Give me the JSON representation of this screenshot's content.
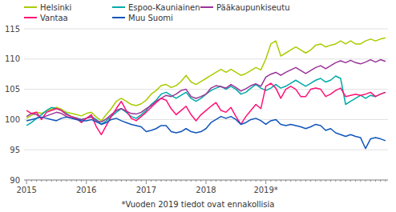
{
  "chart_data": {
    "type": "line",
    "categories": [
      "2015",
      null,
      null,
      null,
      null,
      null,
      null,
      null,
      null,
      null,
      null,
      null,
      "2016",
      null,
      null,
      null,
      null,
      null,
      null,
      null,
      null,
      null,
      null,
      null,
      "2017",
      null,
      null,
      null,
      null,
      null,
      null,
      null,
      null,
      null,
      null,
      null,
      "2018",
      null,
      null,
      null,
      null,
      null,
      null,
      null,
      null,
      null,
      null,
      null,
      "2019*",
      null,
      null,
      null,
      null,
      null,
      null,
      null,
      null,
      null,
      null,
      null,
      null,
      null,
      null,
      null,
      null,
      null,
      null,
      null,
      null,
      null,
      null,
      null,
      null
    ],
    "series": [
      {
        "name": "Helsinki",
        "color": "#aacc00",
        "values": [
          100.2,
          100.7,
          101.2,
          101.0,
          101.4,
          101.7,
          102.0,
          101.7,
          101.2,
          101.0,
          100.8,
          100.6,
          101.0,
          101.2,
          100.4,
          99.8,
          100.8,
          101.8,
          103.0,
          103.5,
          103.0,
          102.5,
          102.3,
          102.6,
          103.2,
          104.2,
          104.8,
          105.6,
          105.8,
          105.3,
          105.6,
          106.3,
          107.3,
          106.2,
          105.8,
          106.3,
          106.8,
          107.3,
          107.8,
          108.3,
          107.8,
          108.3,
          107.8,
          107.3,
          107.6,
          108.1,
          108.6,
          108.2,
          110.0,
          112.5,
          113.0,
          110.5,
          111.0,
          111.5,
          112.0,
          111.5,
          111.0,
          111.5,
          112.3,
          112.5,
          112.0,
          112.3,
          112.5,
          113.0,
          112.5,
          113.0,
          112.5,
          112.5,
          113.0,
          113.3,
          113.0,
          113.3,
          113.5
        ]
      },
      {
        "name": "Espoo-Kauniainen",
        "color": "#00aaaa",
        "values": [
          99.0,
          99.5,
          100.2,
          100.8,
          101.5,
          102.0,
          101.8,
          101.5,
          101.0,
          100.5,
          100.3,
          100.0,
          100.2,
          100.5,
          100.0,
          99.2,
          99.8,
          100.5,
          101.2,
          101.8,
          101.2,
          100.5,
          100.2,
          100.8,
          101.5,
          102.5,
          103.2,
          104.2,
          104.5,
          104.0,
          103.5,
          104.0,
          104.5,
          103.5,
          103.0,
          103.5,
          104.2,
          104.8,
          105.2,
          105.5,
          105.0,
          105.5,
          105.0,
          104.2,
          104.5,
          105.2,
          105.8,
          105.2,
          104.8,
          105.2,
          105.8,
          105.2,
          105.5,
          106.0,
          106.5,
          106.0,
          105.5,
          106.0,
          106.5,
          106.8,
          106.2,
          106.5,
          107.2,
          106.8,
          102.5,
          103.0,
          103.5,
          104.0,
          103.5,
          104.0,
          103.8,
          104.2,
          104.5
        ]
      },
      {
        "name": "Pääkaupunkiseutu",
        "color": "#993399",
        "values": [
          100.5,
          101.0,
          100.8,
          100.3,
          100.6,
          100.9,
          101.2,
          101.0,
          100.5,
          100.3,
          100.1,
          100.0,
          100.2,
          100.4,
          99.8,
          99.6,
          100.1,
          100.8,
          101.5,
          101.8,
          101.4,
          101.0,
          100.9,
          101.2,
          101.8,
          102.3,
          103.0,
          103.5,
          104.0,
          103.8,
          104.2,
          104.8,
          105.0,
          103.8,
          103.5,
          103.8,
          104.2,
          105.2,
          105.6,
          105.4,
          105.2,
          105.8,
          105.3,
          104.7,
          105.1,
          105.6,
          105.9,
          105.5,
          107.0,
          107.5,
          107.8,
          107.3,
          107.8,
          108.2,
          108.6,
          108.1,
          107.6,
          108.1,
          108.6,
          108.9,
          108.4,
          108.9,
          109.4,
          109.7,
          109.4,
          109.8,
          109.4,
          109.2,
          109.5,
          109.9,
          109.5,
          109.9,
          109.6
        ]
      },
      {
        "name": "Vantaa",
        "color": "#ff1177",
        "values": [
          101.5,
          101.0,
          101.2,
          100.0,
          101.2,
          101.5,
          101.8,
          101.5,
          100.8,
          100.5,
          100.2,
          99.5,
          100.2,
          100.8,
          98.8,
          97.5,
          99.0,
          100.5,
          101.8,
          103.0,
          101.5,
          100.2,
          99.8,
          100.5,
          101.2,
          102.0,
          102.8,
          103.5,
          103.2,
          101.8,
          100.8,
          101.5,
          102.2,
          100.8,
          99.8,
          100.8,
          101.5,
          102.2,
          102.8,
          101.5,
          101.2,
          102.0,
          100.5,
          99.2,
          100.5,
          101.5,
          102.5,
          101.8,
          105.5,
          106.0,
          105.2,
          103.5,
          105.0,
          105.5,
          105.0,
          103.8,
          103.8,
          105.0,
          105.2,
          105.0,
          103.8,
          104.2,
          104.8,
          105.2,
          103.8,
          104.0,
          104.2,
          104.0,
          104.2,
          104.5,
          103.8,
          104.2,
          104.5
        ]
      },
      {
        "name": "Muu Suomi",
        "color": "#1155bb",
        "values": [
          99.8,
          100.0,
          100.2,
          100.4,
          100.2,
          100.0,
          99.8,
          100.2,
          100.4,
          100.2,
          100.0,
          99.8,
          99.8,
          100.0,
          99.6,
          99.2,
          99.5,
          100.0,
          100.2,
          99.8,
          99.5,
          99.2,
          99.0,
          98.8,
          98.0,
          98.2,
          98.5,
          99.0,
          99.0,
          98.0,
          97.8,
          98.0,
          98.5,
          98.0,
          97.8,
          98.0,
          98.5,
          99.5,
          100.0,
          100.5,
          100.2,
          100.5,
          100.0,
          99.2,
          99.5,
          100.0,
          100.2,
          99.8,
          99.2,
          99.8,
          100.0,
          99.2,
          99.0,
          99.2,
          99.0,
          98.8,
          98.5,
          98.8,
          99.2,
          99.0,
          98.2,
          98.5,
          97.8,
          97.5,
          97.2,
          97.5,
          97.2,
          97.0,
          95.2,
          96.8,
          97.0,
          96.8,
          96.5
        ]
      }
    ],
    "ylim": [
      90,
      115
    ],
    "yticks": [
      90,
      95,
      100,
      105,
      110,
      115
    ],
    "grid": true,
    "legend": "upper left",
    "annotations": [
      "*Vuoden 2019 tiedot ovat ennakollisia"
    ]
  }
}
